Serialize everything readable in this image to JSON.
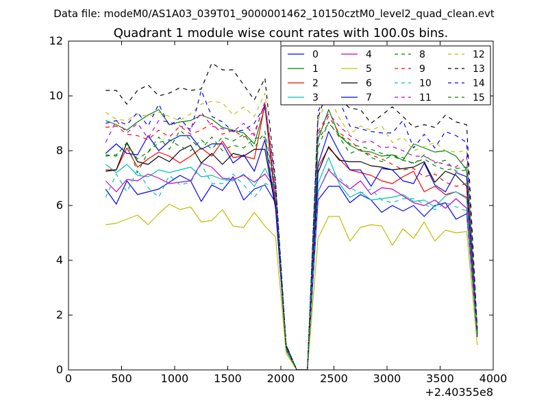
{
  "chart_data": {
    "type": "line",
    "suptitle": "Data file: modeM0/AS1A03_039T01_9000001462_10150cztM0_level2_quad_clean.evt",
    "title": "Quadrant 1 module wise count rates with 100.0s bins.",
    "xlabel": "",
    "ylabel": "",
    "x_offset_label": "+2.40355e8",
    "xlim": [
      0,
      4000
    ],
    "ylim": [
      0,
      12
    ],
    "xticks": [
      0,
      500,
      1000,
      1500,
      2000,
      2500,
      3000,
      3500,
      4000
    ],
    "yticks": [
      0,
      2,
      4,
      6,
      8,
      10,
      12
    ],
    "legend_columns": 4,
    "legend_position": "top-right",
    "x": [
      350,
      450,
      550,
      650,
      750,
      850,
      950,
      1050,
      1150,
      1250,
      1350,
      1450,
      1550,
      1650,
      1750,
      1850,
      1950,
      2050,
      2150,
      2250,
      2350,
      2450,
      2550,
      2650,
      2750,
      2850,
      2950,
      3050,
      3150,
      3250,
      3350,
      3450,
      3550,
      3650,
      3750,
      3850
    ],
    "series": [
      {
        "name": "0",
        "color": "#0000ff",
        "dash": "solid",
        "values": [
          6.6,
          6.05,
          6.9,
          6.4,
          6.5,
          6.6,
          6.85,
          7.1,
          6.9,
          6.15,
          6.75,
          6.55,
          7.05,
          6.2,
          6.6,
          6.75,
          6.1,
          0.8,
          0,
          0,
          6.2,
          6.7,
          6.7,
          6.1,
          6.4,
          6.2,
          5.75,
          6.0,
          5.8,
          6.0,
          5.6,
          6.0,
          6.1,
          5.5,
          5.7,
          1.2
        ]
      },
      {
        "name": "1",
        "color": "#008000",
        "dash": "solid",
        "values": [
          9.1,
          8.95,
          8.75,
          9.05,
          9.3,
          9.5,
          8.95,
          9.05,
          9.1,
          9.3,
          9.15,
          8.85,
          8.75,
          8.65,
          8.25,
          9.6,
          6.1,
          0.85,
          0,
          0,
          8.4,
          9.5,
          8.55,
          8.2,
          8.0,
          7.95,
          7.8,
          7.85,
          7.65,
          8.25,
          8.1,
          7.95,
          8.0,
          7.8,
          7.3,
          1.4
        ]
      },
      {
        "name": "2",
        "color": "#ff0000",
        "dash": "solid",
        "values": [
          7.3,
          7.3,
          8.1,
          7.4,
          7.7,
          7.95,
          7.8,
          7.55,
          7.8,
          8.1,
          7.8,
          8.35,
          7.75,
          7.8,
          7.7,
          9.7,
          6.0,
          0.75,
          0,
          0,
          7.4,
          8.1,
          7.7,
          7.3,
          7.2,
          7.1,
          6.9,
          6.8,
          7.05,
          7.25,
          6.5,
          6.7,
          6.4,
          6.5,
          6.3,
          1.35
        ]
      },
      {
        "name": "3",
        "color": "#00bfbf",
        "dash": "solid",
        "values": [
          7.5,
          7.2,
          7.5,
          7.1,
          7.05,
          7.3,
          7.2,
          7.3,
          7.4,
          7.05,
          7.1,
          6.95,
          6.9,
          7.15,
          6.7,
          7.35,
          6.6,
          0.7,
          0,
          0,
          6.8,
          7.75,
          6.8,
          6.3,
          6.5,
          6.2,
          6.25,
          6.3,
          6.4,
          6.15,
          6.2,
          5.95,
          6.35,
          6.5,
          6.25,
          1.3
        ]
      },
      {
        "name": "4",
        "color": "#bf00bf",
        "dash": "solid",
        "values": [
          6.9,
          6.5,
          6.95,
          6.9,
          7.15,
          7.0,
          6.8,
          6.85,
          6.9,
          7.55,
          7.4,
          7.0,
          6.95,
          7.1,
          6.85,
          7.15,
          6.6,
          0.75,
          0,
          0,
          6.5,
          7.3,
          6.9,
          6.6,
          6.9,
          6.4,
          6.65,
          6.6,
          6.35,
          6.1,
          6.0,
          6.2,
          5.9,
          6.25,
          5.9,
          1.25
        ]
      },
      {
        "name": "5",
        "color": "#bfbf00",
        "dash": "solid",
        "values": [
          5.3,
          5.35,
          5.5,
          5.65,
          5.3,
          5.7,
          6.05,
          5.85,
          5.95,
          5.4,
          5.45,
          5.85,
          5.25,
          5.2,
          5.75,
          5.25,
          4.85,
          0.6,
          0,
          0,
          4.8,
          5.6,
          5.6,
          4.7,
          5.2,
          5.3,
          5.25,
          4.55,
          5.15,
          4.8,
          5.4,
          4.7,
          5.1,
          5.0,
          5.05,
          0.9
        ]
      },
      {
        "name": "6",
        "color": "#000000",
        "dash": "solid",
        "values": [
          7.25,
          7.3,
          8.3,
          7.6,
          7.5,
          7.8,
          7.6,
          8.0,
          8.2,
          7.55,
          7.9,
          7.5,
          7.9,
          7.8,
          8.05,
          8.05,
          5.9,
          0.9,
          0,
          0,
          7.2,
          8.15,
          7.65,
          7.6,
          7.6,
          7.45,
          7.4,
          7.3,
          7.35,
          7.4,
          7.6,
          6.85,
          7.25,
          7.1,
          6.7,
          1.4
        ]
      },
      {
        "name": "7",
        "color": "#0000ff",
        "dash": "solid",
        "values": [
          7.9,
          8.25,
          7.9,
          7.85,
          8.55,
          8.0,
          8.35,
          8.55,
          8.55,
          8.05,
          8.25,
          8.25,
          7.55,
          7.85,
          7.25,
          8.4,
          5.95,
          0.8,
          0,
          0,
          7.5,
          8.7,
          7.95,
          7.3,
          7.3,
          6.7,
          7.35,
          7.3,
          6.9,
          6.8,
          7.55,
          6.75,
          6.5,
          7.2,
          7.05,
          1.3
        ]
      },
      {
        "name": "8",
        "color": "#008000",
        "dash": "dash",
        "values": [
          7.85,
          7.8,
          8.3,
          7.2,
          7.95,
          8.3,
          8.4,
          8.15,
          8.0,
          8.4,
          8.05,
          8.5,
          8.35,
          8.6,
          8.1,
          8.7,
          6.6,
          0.8,
          0,
          0,
          8.1,
          9.05,
          8.5,
          7.9,
          8.05,
          7.75,
          7.6,
          7.85,
          7.75,
          7.5,
          7.85,
          7.55,
          7.65,
          7.25,
          7.3,
          1.3
        ]
      },
      {
        "name": "9",
        "color": "#ff0000",
        "dash": "dash",
        "values": [
          8.85,
          8.9,
          8.6,
          8.55,
          8.4,
          8.75,
          8.5,
          8.9,
          8.6,
          8.75,
          9.0,
          8.6,
          8.75,
          8.5,
          8.65,
          9.7,
          6.4,
          0.85,
          0,
          0,
          8.6,
          9.25,
          8.65,
          8.4,
          8.0,
          7.85,
          7.7,
          7.5,
          7.3,
          7.35,
          7.05,
          7.15,
          6.85,
          6.7,
          6.8,
          1.4
        ]
      },
      {
        "name": "10",
        "color": "#00bfbf",
        "dash": "dash",
        "values": [
          6.3,
          7.15,
          6.5,
          7.3,
          6.65,
          6.3,
          7.1,
          6.75,
          6.85,
          7.5,
          6.8,
          6.8,
          7.15,
          6.75,
          6.3,
          6.8,
          6.7,
          0.75,
          0,
          0,
          6.5,
          7.35,
          7.0,
          6.65,
          6.45,
          6.6,
          6.2,
          6.1,
          6.25,
          6.25,
          6.05,
          5.85,
          6.1,
          5.95,
          5.8,
          1.2
        ]
      },
      {
        "name": "11",
        "color": "#bf00bf",
        "dash": "dash",
        "values": [
          8.3,
          9.1,
          8.65,
          9.0,
          8.45,
          9.1,
          9.05,
          8.9,
          8.8,
          9.4,
          8.9,
          8.8,
          8.7,
          9.0,
          8.55,
          9.8,
          6.5,
          0.85,
          0,
          0,
          8.7,
          9.35,
          8.9,
          8.55,
          8.3,
          8.35,
          8.1,
          8.15,
          8.0,
          7.8,
          7.8,
          7.6,
          7.5,
          7.4,
          7.8,
          1.4
        ]
      },
      {
        "name": "12",
        "color": "#bfbf00",
        "dash": "dash",
        "values": [
          9.4,
          9.15,
          9.1,
          9.35,
          9.25,
          9.4,
          9.25,
          9.1,
          9.35,
          9.7,
          9.8,
          9.75,
          9.3,
          9.6,
          9.25,
          10.1,
          6.7,
          0.85,
          0,
          0,
          9.1,
          10.0,
          9.2,
          8.6,
          8.9,
          8.75,
          8.9,
          8.3,
          8.5,
          8.0,
          8.15,
          8.3,
          8.0,
          7.95,
          8.0,
          1.5
        ]
      },
      {
        "name": "13",
        "color": "#000000",
        "dash": "dash",
        "values": [
          10.2,
          10.2,
          9.7,
          10.2,
          10.4,
          10.0,
          10.1,
          10.3,
          10.2,
          10.25,
          11.2,
          10.95,
          10.95,
          10.4,
          9.85,
          10.65,
          6.9,
          0.9,
          0,
          0,
          9.2,
          10.35,
          9.9,
          9.55,
          9.5,
          9.0,
          9.3,
          9.6,
          9.25,
          8.85,
          8.95,
          8.85,
          9.3,
          9.05,
          8.95,
          1.5
        ]
      },
      {
        "name": "14",
        "color": "#0000ff",
        "dash": "dash",
        "values": [
          9.0,
          9.1,
          8.95,
          9.4,
          8.9,
          9.7,
          8.9,
          9.2,
          8.7,
          10.2,
          9.25,
          9.05,
          8.7,
          8.75,
          9.0,
          9.65,
          6.8,
          0.85,
          0,
          0,
          9.4,
          10.45,
          9.85,
          8.9,
          8.8,
          8.7,
          8.65,
          8.65,
          9.1,
          8.1,
          8.6,
          8.1,
          8.7,
          8.55,
          8.3,
          1.5
        ]
      },
      {
        "name": "15",
        "color": "#008000",
        "dash": "dash",
        "values": [
          7.8,
          7.85,
          8.25,
          7.7,
          7.95,
          8.5,
          8.05,
          8.75,
          8.4,
          8.05,
          8.5,
          8.0,
          8.2,
          8.1,
          8.45,
          8.5,
          6.4,
          0.8,
          0,
          0,
          8.4,
          9.0,
          8.6,
          8.25,
          8.15,
          8.05,
          7.9,
          7.8,
          7.65,
          7.55,
          7.7,
          7.45,
          7.3,
          7.35,
          7.4,
          1.3
        ]
      }
    ]
  }
}
